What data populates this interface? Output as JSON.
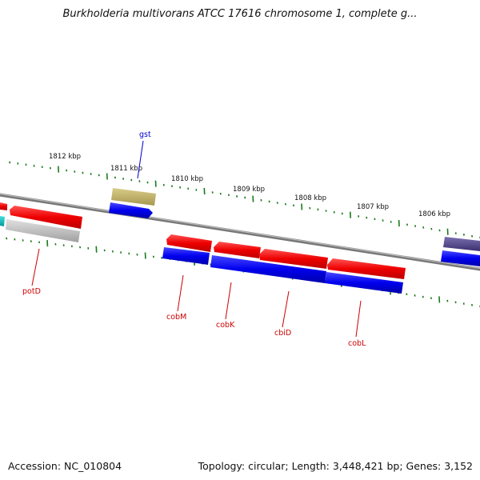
{
  "title": "Burkholderia multivorans ATCC 17616 chromosome 1, complete g...",
  "footer": {
    "accession": "Accession: NC_010804",
    "summary": "Topology: circular; Length: 3,448,421 bp; Genes: 3,152"
  },
  "colors": {
    "forward_strand": "#ff0000",
    "reverse_strand": "#0000ee",
    "tick": "#1a7a1a",
    "backbone": "#7a7a7a",
    "gene_label_red": "#cc0000",
    "gene_label_blue": "#0000cc"
  },
  "scale_labels": [
    "1812 kbp",
    "1811 kbp",
    "1810 kbp",
    "1809 kbp",
    "1808 kbp",
    "1807 kbp",
    "1806 kbp"
  ],
  "genes": [
    {
      "name": "potD",
      "strand": "forward",
      "color": "#cc0000"
    },
    {
      "name": "gst",
      "strand": "forward",
      "color": "#0000cc"
    },
    {
      "name": "cobM",
      "strand": "forward",
      "color": "#cc0000"
    },
    {
      "name": "cobK",
      "strand": "forward",
      "color": "#cc0000"
    },
    {
      "name": "cbiD",
      "strand": "forward",
      "color": "#cc0000"
    },
    {
      "name": "cobL",
      "strand": "forward",
      "color": "#cc0000"
    }
  ]
}
